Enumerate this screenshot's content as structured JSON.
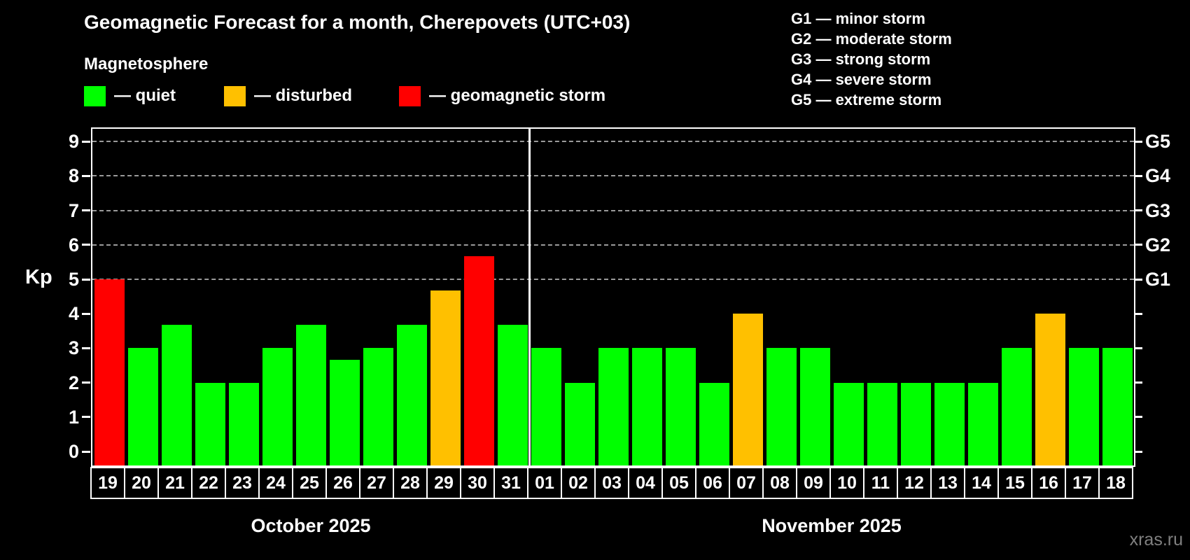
{
  "header": {
    "title": "Geomagnetic Forecast for a month, Cherepovets (UTC+03)",
    "subtitle": "Magnetosphere"
  },
  "legend": {
    "quiet": {
      "label": "— quiet",
      "color": "#00ff00"
    },
    "disturbed": {
      "label": "— disturbed",
      "color": "#ffc000"
    },
    "storm": {
      "label": "— geomagnetic storm",
      "color": "#ff0000"
    }
  },
  "storm_scale_legend": {
    "g1": "G1 — minor storm",
    "g2": "G2 — moderate storm",
    "g3": "G3 — strong storm",
    "g4": "G4 — severe storm",
    "g5": "G5 — extreme storm"
  },
  "chart_data": {
    "type": "bar",
    "title": "Geomagnetic Forecast for a month, Cherepovets (UTC+03)",
    "ylabel": "Kp",
    "ylim": [
      0,
      9
    ],
    "yticks": [
      0,
      1,
      2,
      3,
      4,
      5,
      6,
      7,
      8,
      9
    ],
    "gridlines_at": [
      5,
      6,
      7,
      8,
      9
    ],
    "grid_style": "dashed horizontal, storm threshold levels only",
    "legend_position": "top-left",
    "right_axis_labels": [
      {
        "kp": 5,
        "label": "G1"
      },
      {
        "kp": 6,
        "label": "G2"
      },
      {
        "kp": 7,
        "label": "G3"
      },
      {
        "kp": 8,
        "label": "G4"
      },
      {
        "kp": 9,
        "label": "G5"
      }
    ],
    "status_colors": {
      "quiet": "#00ff00",
      "disturbed": "#ffc000",
      "storm": "#ff0000"
    },
    "panels": [
      {
        "month_label": "October 2025",
        "bars": [
          {
            "day": "19",
            "kp": 5.0,
            "status": "storm"
          },
          {
            "day": "20",
            "kp": 3.0,
            "status": "quiet"
          },
          {
            "day": "21",
            "kp": 3.67,
            "status": "quiet"
          },
          {
            "day": "22",
            "kp": 2.0,
            "status": "quiet"
          },
          {
            "day": "23",
            "kp": 2.0,
            "status": "quiet"
          },
          {
            "day": "24",
            "kp": 3.0,
            "status": "quiet"
          },
          {
            "day": "25",
            "kp": 3.67,
            "status": "quiet"
          },
          {
            "day": "26",
            "kp": 2.67,
            "status": "quiet"
          },
          {
            "day": "27",
            "kp": 3.0,
            "status": "quiet"
          },
          {
            "day": "28",
            "kp": 3.67,
            "status": "quiet"
          },
          {
            "day": "29",
            "kp": 4.67,
            "status": "disturbed"
          },
          {
            "day": "30",
            "kp": 5.67,
            "status": "storm"
          },
          {
            "day": "31",
            "kp": 3.67,
            "status": "quiet"
          }
        ]
      },
      {
        "month_label": "November 2025",
        "bars": [
          {
            "day": "01",
            "kp": 3.0,
            "status": "quiet"
          },
          {
            "day": "02",
            "kp": 2.0,
            "status": "quiet"
          },
          {
            "day": "03",
            "kp": 3.0,
            "status": "quiet"
          },
          {
            "day": "04",
            "kp": 3.0,
            "status": "quiet"
          },
          {
            "day": "05",
            "kp": 3.0,
            "status": "quiet"
          },
          {
            "day": "06",
            "kp": 2.0,
            "status": "quiet"
          },
          {
            "day": "07",
            "kp": 4.0,
            "status": "disturbed"
          },
          {
            "day": "08",
            "kp": 3.0,
            "status": "quiet"
          },
          {
            "day": "09",
            "kp": 3.0,
            "status": "quiet"
          },
          {
            "day": "10",
            "kp": 2.0,
            "status": "quiet"
          },
          {
            "day": "11",
            "kp": 2.0,
            "status": "quiet"
          },
          {
            "day": "12",
            "kp": 2.0,
            "status": "quiet"
          },
          {
            "day": "13",
            "kp": 2.0,
            "status": "quiet"
          },
          {
            "day": "14",
            "kp": 2.0,
            "status": "quiet"
          },
          {
            "day": "15",
            "kp": 3.0,
            "status": "quiet"
          },
          {
            "day": "16",
            "kp": 4.0,
            "status": "disturbed"
          },
          {
            "day": "17",
            "kp": 3.0,
            "status": "quiet"
          },
          {
            "day": "18",
            "kp": 3.0,
            "status": "quiet"
          }
        ]
      }
    ]
  },
  "watermark": "xras.ru"
}
